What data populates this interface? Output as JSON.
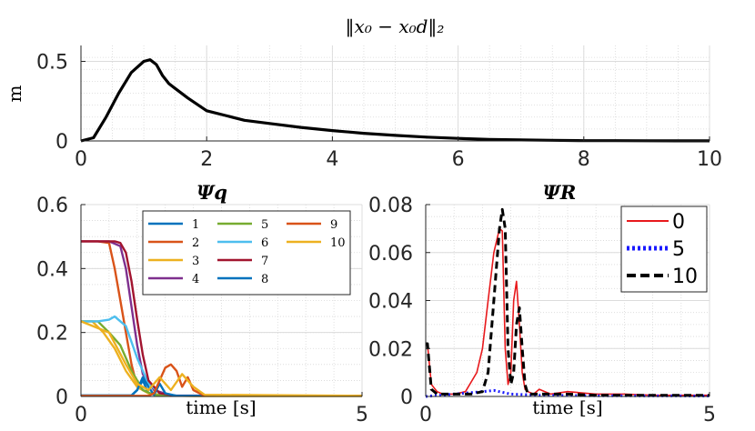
{
  "chart_data": [
    {
      "type": "line",
      "title": "‖x₀ − x₀d‖₂",
      "xlabel": "",
      "ylabel": "m",
      "xlim": [
        0,
        10
      ],
      "ylim": [
        0,
        0.6
      ],
      "xticks": [
        "0",
        "2",
        "4",
        "6",
        "8",
        "10"
      ],
      "yticks": [
        "0",
        "0.5"
      ],
      "grid": true,
      "series": [
        {
          "name": "‖x₀ − x₀d‖₂",
          "color": "#000000",
          "x": [
            0,
            0.2,
            0.4,
            0.6,
            0.8,
            1.0,
            1.1,
            1.2,
            1.3,
            1.4,
            1.5,
            1.7,
            2.0,
            2.3,
            2.6,
            3.0,
            3.5,
            4.0,
            4.5,
            5.0,
            5.5,
            6.0,
            6.5,
            7.0,
            7.5,
            8.0,
            8.5,
            9.0,
            9.5,
            10.0
          ],
          "y": [
            0,
            0.02,
            0.15,
            0.3,
            0.43,
            0.5,
            0.51,
            0.48,
            0.41,
            0.36,
            0.33,
            0.27,
            0.19,
            0.16,
            0.13,
            0.11,
            0.085,
            0.065,
            0.048,
            0.035,
            0.024,
            0.016,
            0.01,
            0.006,
            0.004,
            0.002,
            0.0015,
            0.001,
            0.0005,
            0.0003
          ]
        }
      ]
    },
    {
      "type": "line",
      "title": "Ψq",
      "xlabel": "time [s]",
      "ylabel": "",
      "xlim": [
        0,
        5
      ],
      "ylim": [
        0,
        0.6
      ],
      "xticks": [
        "0",
        "5"
      ],
      "yticks": [
        "0",
        "0.2",
        "0.4",
        "0.6"
      ],
      "grid": true,
      "legend": "top-right",
      "series": [
        {
          "name": "1",
          "color": "#0072BD",
          "x": [
            0,
            0.5,
            0.9,
            1.0,
            1.1,
            1.2,
            1.5,
            5
          ],
          "y": [
            0.003,
            0.003,
            0.003,
            0.02,
            0.05,
            0.01,
            0.002,
            0.002
          ]
        },
        {
          "name": "2",
          "color": "#D95319",
          "x": [
            0,
            0.3,
            0.5,
            0.6,
            0.7,
            0.8,
            0.9,
            1.0,
            1.2,
            1.5,
            5
          ],
          "y": [
            0.485,
            0.485,
            0.48,
            0.4,
            0.3,
            0.2,
            0.1,
            0.03,
            0.01,
            0.002,
            0.002
          ]
        },
        {
          "name": "3",
          "color": "#EDB120",
          "x": [
            0,
            0.2,
            0.4,
            0.6,
            0.8,
            1.0,
            1.2,
            1.5,
            2.0,
            5
          ],
          "y": [
            0.235,
            0.235,
            0.2,
            0.15,
            0.08,
            0.03,
            0.01,
            0.003,
            0.001,
            0.001
          ]
        },
        {
          "name": "4",
          "color": "#7E2F8E",
          "x": [
            0,
            0.5,
            0.7,
            0.8,
            0.9,
            1.0,
            1.1,
            1.3,
            1.6,
            5
          ],
          "y": [
            0.485,
            0.485,
            0.47,
            0.4,
            0.28,
            0.16,
            0.07,
            0.02,
            0.003,
            0.002
          ]
        },
        {
          "name": "5",
          "color": "#77AC30",
          "x": [
            0,
            0.3,
            0.5,
            0.7,
            0.9,
            1.1,
            1.3,
            1.6,
            5
          ],
          "y": [
            0.235,
            0.235,
            0.2,
            0.16,
            0.08,
            0.02,
            0.005,
            0.002,
            0.002
          ]
        },
        {
          "name": "6",
          "color": "#4DBEEE",
          "x": [
            0,
            0.3,
            0.5,
            0.6,
            0.8,
            1.0,
            1.2,
            1.4,
            1.7,
            5
          ],
          "y": [
            0.235,
            0.235,
            0.24,
            0.25,
            0.22,
            0.12,
            0.04,
            0.01,
            0.002,
            0.002
          ]
        },
        {
          "name": "7",
          "color": "#A2142F",
          "x": [
            0,
            0.6,
            0.7,
            0.8,
            0.9,
            1.0,
            1.1,
            1.2,
            1.4,
            1.7,
            5
          ],
          "y": [
            0.485,
            0.485,
            0.48,
            0.45,
            0.36,
            0.24,
            0.13,
            0.05,
            0.01,
            0.002,
            0.002
          ]
        },
        {
          "name": "8",
          "color": "#0072BD",
          "x": [
            0,
            0.9,
            1.0,
            1.1,
            1.2,
            1.3,
            1.4,
            1.5,
            1.7,
            5
          ],
          "y": [
            0.003,
            0.003,
            0.02,
            0.06,
            0.03,
            0.005,
            0.04,
            0.01,
            0.002,
            0.002
          ]
        },
        {
          "name": "9",
          "color": "#D95319",
          "x": [
            0,
            1.2,
            1.3,
            1.4,
            1.5,
            1.6,
            1.7,
            1.8,
            1.9,
            2.0,
            2.2,
            5
          ],
          "y": [
            0.002,
            0.002,
            0.01,
            0.05,
            0.09,
            0.1,
            0.08,
            0.03,
            0.06,
            0.02,
            0.002,
            0.002
          ]
        },
        {
          "name": "10",
          "color": "#EDB120",
          "x": [
            0,
            0.5,
            0.8,
            1.0,
            1.2,
            1.4,
            1.6,
            1.8,
            2.0,
            2.2,
            5
          ],
          "y": [
            0.235,
            0.2,
            0.1,
            0.04,
            0.02,
            0.06,
            0.02,
            0.07,
            0.03,
            0.005,
            0.002
          ]
        }
      ]
    },
    {
      "type": "line",
      "title": "ΨR",
      "xlabel": "time [s]",
      "ylabel": "",
      "xlim": [
        0,
        5
      ],
      "ylim": [
        0,
        0.08
      ],
      "xticks": [
        "0",
        "5"
      ],
      "yticks": [
        "0",
        "0.02",
        "0.04",
        "0.06",
        "0.08"
      ],
      "grid": true,
      "legend": "top-right",
      "series": [
        {
          "name": "0",
          "color": "#e8191c",
          "style": "solid",
          "x": [
            0,
            0.03,
            0.1,
            0.2,
            0.3,
            0.5,
            0.7,
            0.9,
            1.0,
            1.1,
            1.2,
            1.3,
            1.35,
            1.4,
            1.45,
            1.5,
            1.55,
            1.6,
            1.65,
            1.7,
            1.75,
            1.8,
            1.9,
            2.0,
            2.2,
            2.5,
            3.0,
            3.5,
            4.0,
            5.0
          ],
          "y": [
            0.022,
            0.022,
            0.005,
            0.002,
            0.001,
            0.001,
            0.002,
            0.01,
            0.02,
            0.04,
            0.06,
            0.07,
            0.069,
            0.02,
            0.005,
            0.01,
            0.04,
            0.048,
            0.03,
            0.01,
            0.003,
            0.002,
            0.001,
            0.003,
            0.001,
            0.002,
            0.001,
            0.001,
            0.0005,
            0.0005
          ]
        },
        {
          "name": "5",
          "color": "#1a1aff",
          "style": "dotted",
          "x": [
            0,
            0.5,
            1.0,
            1.2,
            1.5,
            2.0,
            3.0,
            5.0
          ],
          "y": [
            0.0,
            0.001,
            0.002,
            0.0025,
            0.001,
            0.0005,
            0.0003,
            0.0002
          ]
        },
        {
          "name": "10",
          "color": "#000000",
          "style": "dashed",
          "x": [
            0,
            0.03,
            0.1,
            0.2,
            0.5,
            0.8,
            1.0,
            1.1,
            1.2,
            1.3,
            1.35,
            1.4,
            1.45,
            1.5,
            1.55,
            1.6,
            1.65,
            1.7,
            1.75,
            1.8,
            2.0,
            2.5,
            3.0,
            4.0,
            5.0
          ],
          "y": [
            0.022,
            0.022,
            0.003,
            0.001,
            0.001,
            0.001,
            0.002,
            0.01,
            0.04,
            0.07,
            0.078,
            0.07,
            0.02,
            0.005,
            0.01,
            0.03,
            0.037,
            0.02,
            0.005,
            0.001,
            0.001,
            0.001,
            0.0005,
            0.0005,
            0.0005
          ]
        }
      ]
    }
  ]
}
